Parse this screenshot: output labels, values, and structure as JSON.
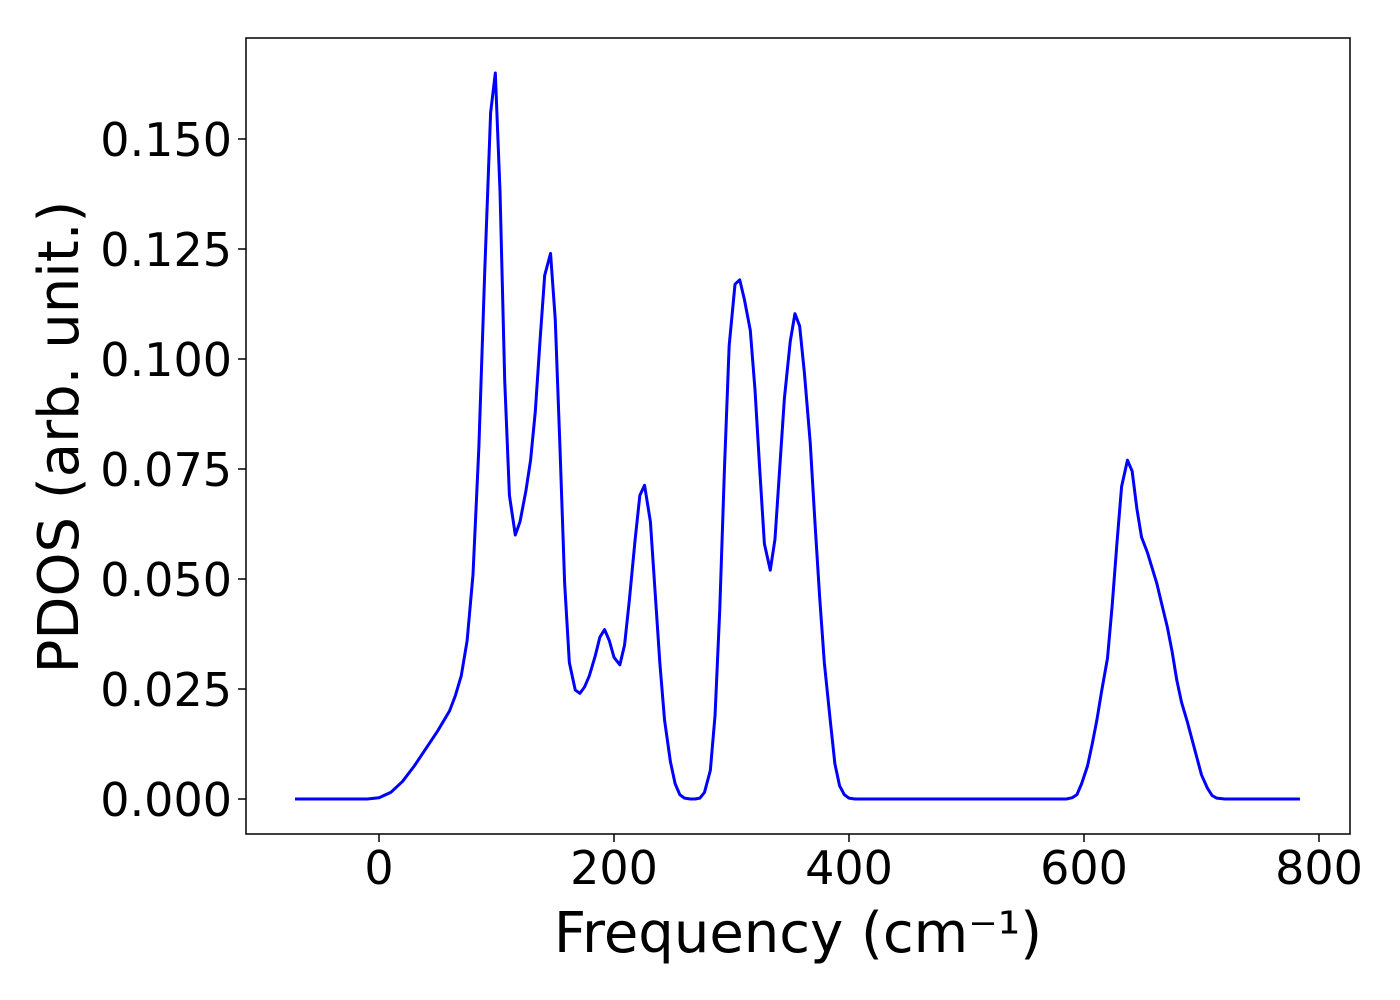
{
  "chart_data": {
    "type": "line",
    "xlabel": "Frequency (cm⁻¹)",
    "ylabel": "PDOS (arb. unit.)",
    "x": [
      -71.5,
      -40,
      -10,
      0,
      10,
      20,
      30,
      40,
      50,
      60,
      65,
      70,
      75,
      80,
      85,
      90,
      95,
      99,
      103,
      107,
      111,
      116,
      120,
      125,
      129,
      133,
      137,
      141,
      146,
      150,
      154,
      158,
      162,
      167,
      171,
      175,
      179,
      184,
      188,
      192,
      196,
      200,
      205,
      209,
      213,
      218,
      222,
      226,
      231,
      235,
      239,
      243,
      248,
      252,
      256,
      260,
      265,
      269,
      273,
      277,
      282,
      286,
      290,
      294,
      298,
      303,
      307,
      311,
      316,
      320,
      324,
      328,
      333,
      337,
      341,
      345,
      350,
      354,
      358,
      362,
      367,
      371,
      375,
      379,
      384,
      388,
      392,
      396,
      400,
      405,
      450,
      500,
      550,
      585,
      590,
      594,
      598,
      603,
      607,
      611,
      615,
      620,
      624,
      628,
      632,
      637,
      641,
      645,
      649,
      654,
      658,
      662,
      666,
      671,
      675,
      679,
      683,
      688,
      692,
      696,
      700,
      705,
      709,
      713,
      720,
      750,
      783.8
    ],
    "series": [
      {
        "color": "#0000ff",
        "values": [
          0,
          0,
          0,
          0.0003,
          0.0015,
          0.004,
          0.0075,
          0.0115,
          0.0155,
          0.02,
          0.0235,
          0.028,
          0.036,
          0.051,
          0.08,
          0.12,
          0.156,
          0.165,
          0.138,
          0.095,
          0.069,
          0.06,
          0.063,
          0.07,
          0.077,
          0.088,
          0.104,
          0.119,
          0.124,
          0.109,
          0.08,
          0.049,
          0.031,
          0.0248,
          0.024,
          0.0255,
          0.028,
          0.0325,
          0.0368,
          0.0385,
          0.036,
          0.0322,
          0.0305,
          0.035,
          0.045,
          0.059,
          0.069,
          0.0713,
          0.063,
          0.047,
          0.031,
          0.018,
          0.0085,
          0.0035,
          0.001,
          0.0002,
          0,
          0,
          0.0002,
          0.0015,
          0.0065,
          0.019,
          0.043,
          0.075,
          0.103,
          0.117,
          0.118,
          0.1135,
          0.1065,
          0.093,
          0.075,
          0.058,
          0.052,
          0.059,
          0.075,
          0.091,
          0.104,
          0.1103,
          0.1075,
          0.097,
          0.081,
          0.063,
          0.046,
          0.031,
          0.018,
          0.008,
          0.003,
          0.001,
          0.0002,
          0,
          0,
          0,
          0,
          0,
          0.0003,
          0.001,
          0.0035,
          0.0075,
          0.0125,
          0.018,
          0.0245,
          0.032,
          0.044,
          0.058,
          0.071,
          0.077,
          0.0745,
          0.066,
          0.0595,
          0.056,
          0.0525,
          0.049,
          0.0445,
          0.039,
          0.0335,
          0.027,
          0.022,
          0.0175,
          0.0135,
          0.0095,
          0.0055,
          0.0025,
          0.0008,
          0.0002,
          0,
          0,
          0
        ]
      }
    ],
    "xlim": [
      -113.2,
      826.4
    ],
    "ylim": [
      -0.00795,
      0.17295
    ],
    "xticks": [
      0,
      200,
      400,
      600,
      800
    ],
    "yticks": [
      {
        "value": 0,
        "label": "0.000"
      },
      {
        "value": 0.025,
        "label": "0.025"
      },
      {
        "value": 0.05,
        "label": "0.050"
      },
      {
        "value": 0.075,
        "label": "0.075"
      },
      {
        "value": 0.1,
        "label": "0.100"
      },
      {
        "value": 0.125,
        "label": "0.125"
      },
      {
        "value": 0.15,
        "label": "0.150"
      }
    ]
  }
}
